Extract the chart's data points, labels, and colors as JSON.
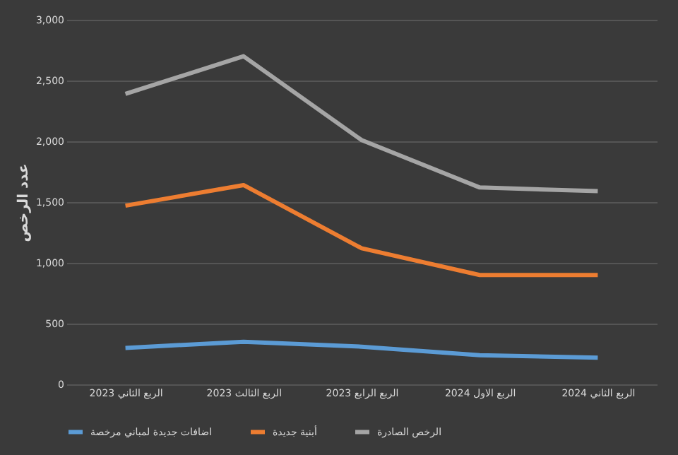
{
  "chart_data": {
    "type": "line",
    "ylabel": "عدد الرخص",
    "categories": [
      "الربع الثاني 2023",
      "الربع الثالث 2023",
      "الربع الرابع 2023",
      "الربع الاول 2024",
      "الربع الثاني 2024"
    ],
    "series": [
      {
        "name": "اضافات جديدة لمباني مرخصة",
        "color": "#5b9bd5",
        "values": [
          300,
          350,
          310,
          240,
          220
        ]
      },
      {
        "name": "أبنية جديدة",
        "color": "#ed7d31",
        "values": [
          1470,
          1640,
          1120,
          900,
          900
        ]
      },
      {
        "name": "الرخص الصادرة",
        "color": "#a5a5a5",
        "values": [
          2390,
          2700,
          2010,
          1620,
          1590
        ]
      }
    ],
    "ylim": [
      0,
      3000
    ],
    "yticks": [
      0,
      500,
      {
        "value": 1000,
        "label": "1,000"
      },
      {
        "value": 1500,
        "label": "1,500"
      },
      {
        "value": 2000,
        "label": "2,000"
      },
      {
        "value": 2500,
        "label": "2,500"
      },
      {
        "value": 3000,
        "label": "3,000"
      }
    ],
    "grid": "y",
    "legend": "bottom",
    "marker": "none",
    "line_style": "solid"
  }
}
